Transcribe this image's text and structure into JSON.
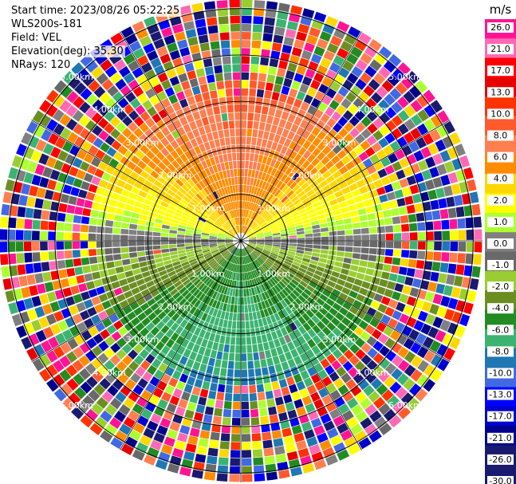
{
  "header": {
    "start_time": "Start time: 2023/08/26 05:22:25",
    "instrument": "WLS200s-181",
    "field": "Field: VEL",
    "elevation": "Elevation(deg): 35.30",
    "nrays": "NRays: 120"
  },
  "chart_data": {
    "type": "heatmap",
    "projection": "polar-ppi",
    "field": "VEL",
    "units": "m/s",
    "nrays": 120,
    "max_range_km": 5.2,
    "range_ring_labels": [
      "1.00km",
      "2.00km",
      "3.00km",
      "4.00km",
      "5.00km"
    ],
    "range_rings_km": [
      1,
      2,
      3,
      4,
      5
    ],
    "colorbar": {
      "title": "m/s",
      "tick_labels": [
        "26.0",
        "21.0",
        "17.0",
        "13.0",
        "10.0",
        "8.0",
        "6.0",
        "4.0",
        "2.0",
        "1.0",
        "0.0",
        "-1.0",
        "-2.0",
        "-4.0",
        "-6.0",
        "-8.0",
        "-10.0",
        "-13.0",
        "-17.0",
        "-21.0",
        "-26.0",
        "-30.0"
      ],
      "bin_colors": [
        "#ff1493",
        "#ff69b4",
        "#ff0000",
        "#e60000",
        "#ff3300",
        "#ff5a2d",
        "#ff7f50",
        "#ff8c00",
        "#ffd700",
        "#ffff00",
        "#adff2f",
        "#808080",
        "#696969",
        "#9acd32",
        "#6b8e23",
        "#228b22",
        "#3cb371",
        "#1f77b4",
        "#4169e1",
        "#0000ff",
        "#0000cd",
        "#00008b",
        "#191970",
        "#1a1a6e"
      ]
    },
    "velocity_pattern": {
      "description": "receding (positive) toward north, approaching (negative) toward south, near-zero band along east-west",
      "north_peak_mps": 10.0,
      "south_peak_mps": -8.0,
      "noise_begins_km": 3.3
    }
  }
}
